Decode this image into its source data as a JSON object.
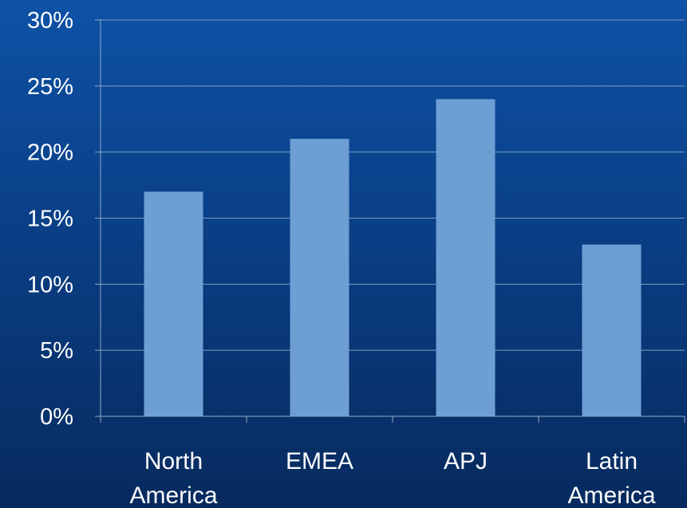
{
  "chart_data": {
    "type": "bar",
    "categories": [
      [
        "North",
        "America"
      ],
      [
        "EMEA"
      ],
      [
        "APJ"
      ],
      [
        "Latin",
        "America"
      ]
    ],
    "values": [
      17,
      21,
      24,
      13
    ],
    "ylim": [
      0,
      30
    ],
    "yticks": [
      0,
      5,
      10,
      15,
      20,
      25,
      30
    ],
    "ytick_labels": [
      "0%",
      "5%",
      "10%",
      "15%",
      "20%",
      "25%",
      "30%"
    ],
    "grid": true,
    "legend": "none",
    "title": "",
    "xlabel": "",
    "ylabel": "",
    "colors": {
      "bar": "#6d9fd4",
      "grid": "#7f9cc4",
      "axis": "#8fa7c8",
      "text": "#ffffff"
    }
  }
}
